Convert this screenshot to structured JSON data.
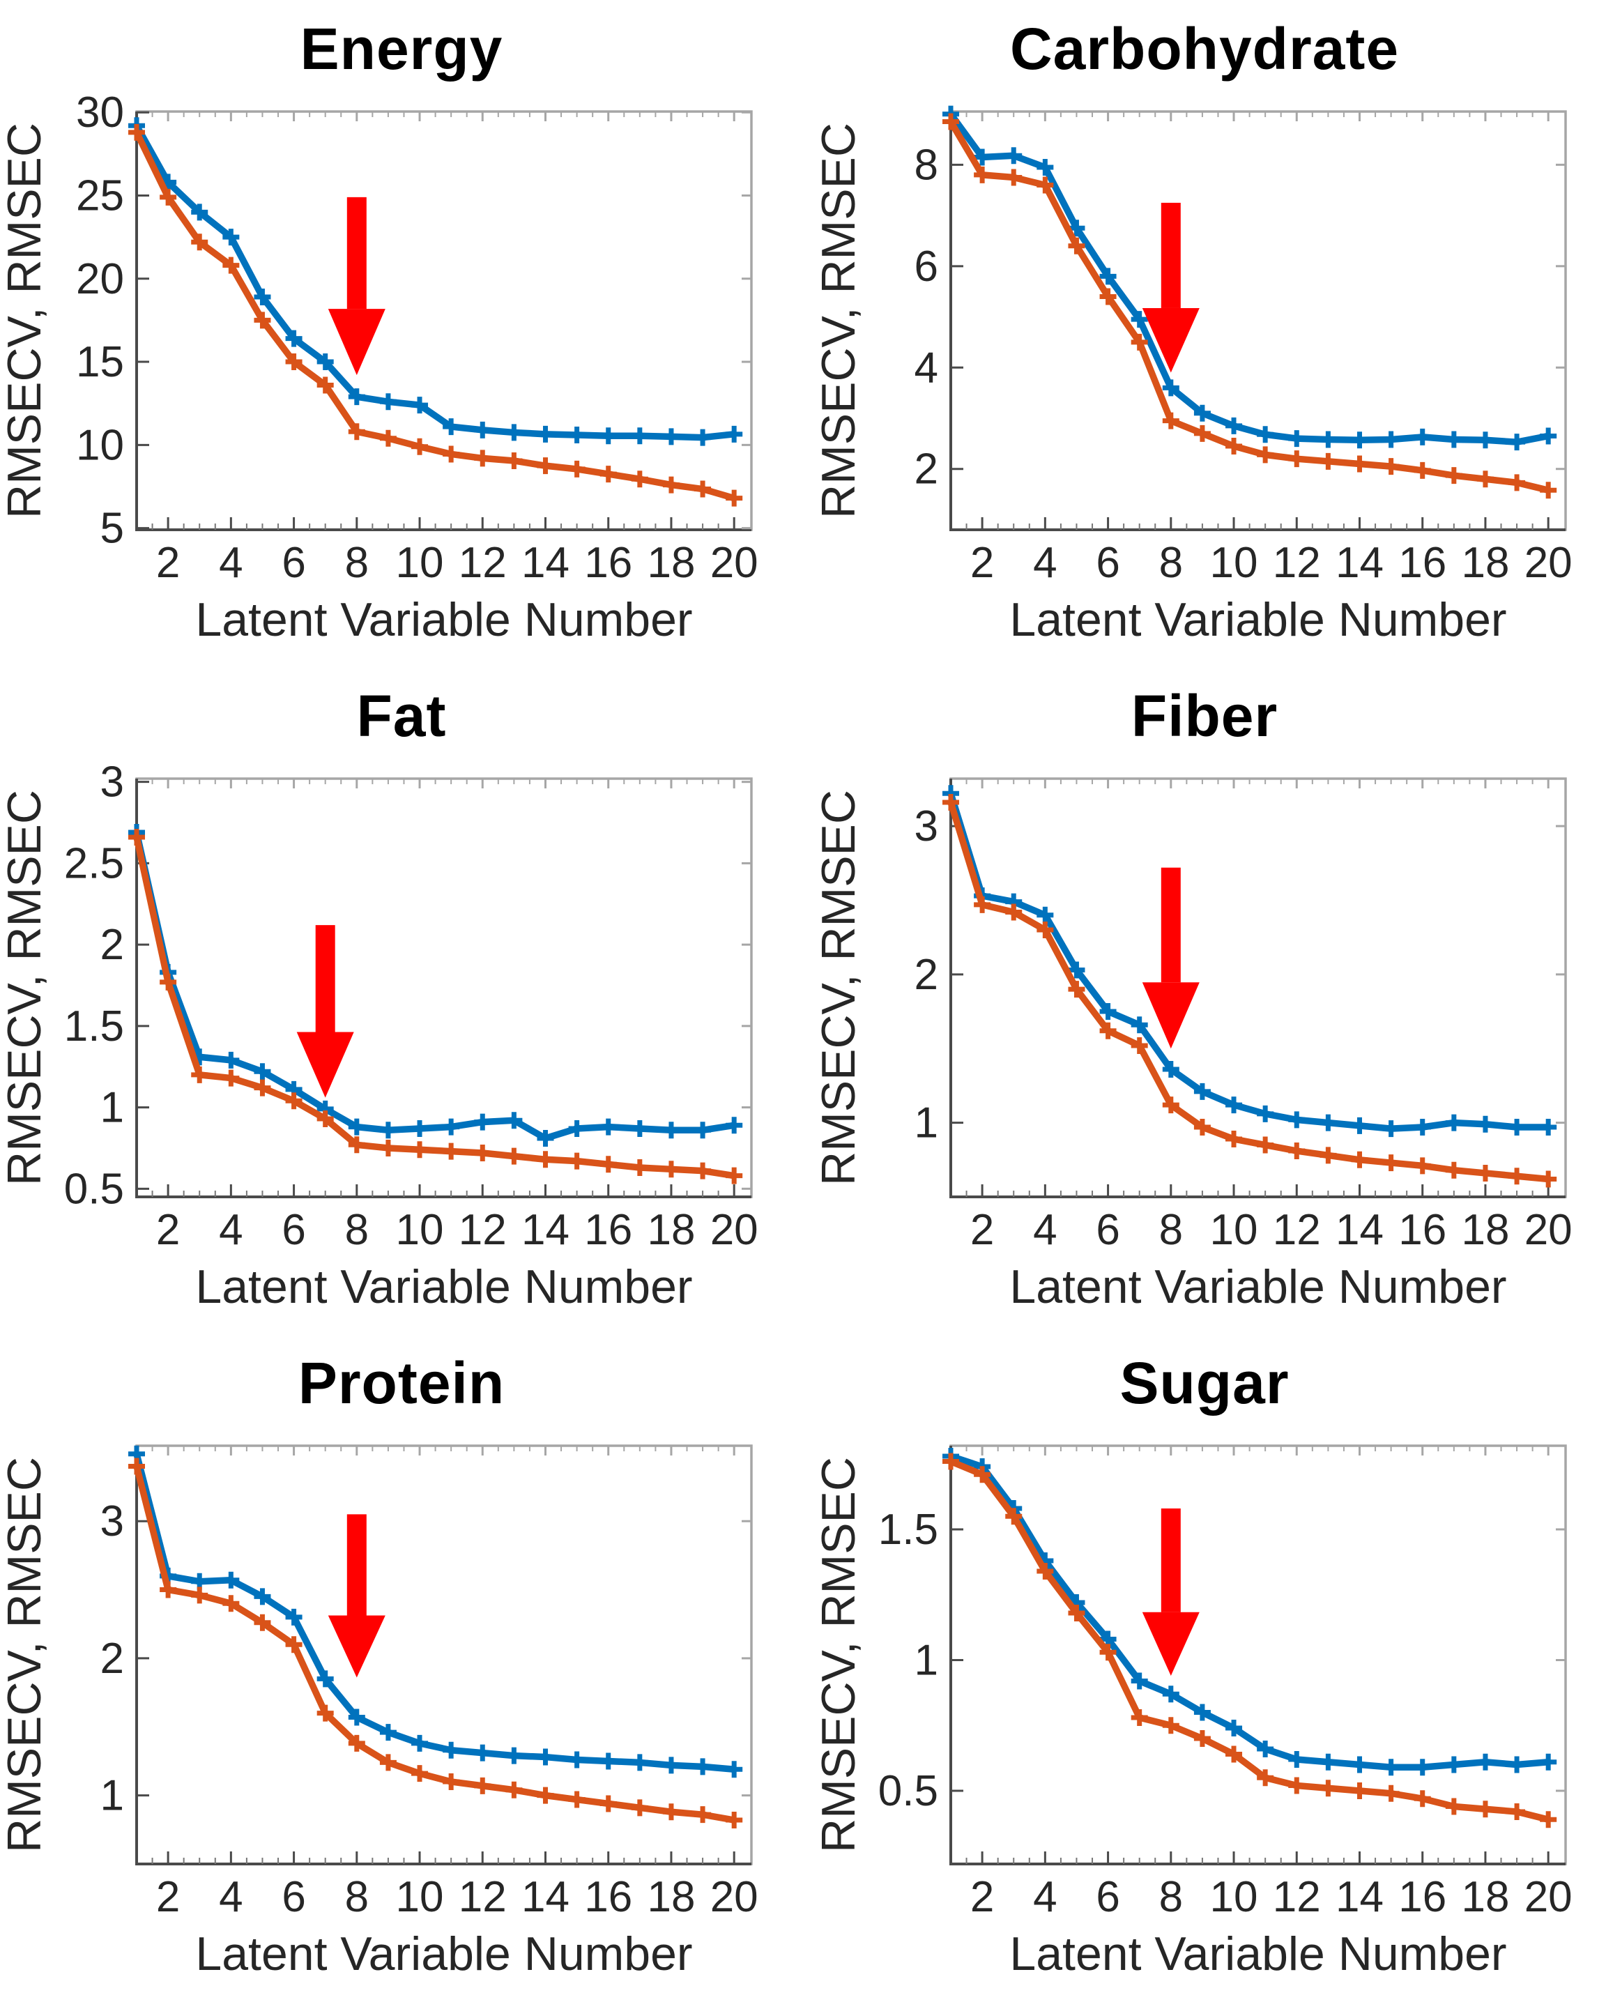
{
  "page": {
    "background": "#ffffff",
    "description": "Grid of six PLS regression diagnostic plots showing RMSECV and RMSEC versus number of latent variables, each with a red arrow marking the selected latent variable number"
  },
  "colors": {
    "rmsecv_blue": "#0072BD",
    "rmsec_orange": "#D95319",
    "arrow_red": "#FF0000",
    "axis_dark": "#4a4a4a",
    "axis_light": "#a6a6a6",
    "text": "#262626"
  },
  "x_values": [
    1,
    2,
    3,
    4,
    5,
    6,
    7,
    8,
    9,
    10,
    11,
    12,
    13,
    14,
    15,
    16,
    17,
    18,
    19,
    20
  ],
  "chart_data": [
    {
      "type": "line",
      "title": "Energy",
      "xlabel": "Latent Variable Number",
      "ylabel": "RMSECV, RMSEC",
      "xlim": [
        1,
        20.55
      ],
      "ylim": [
        4.9,
        30.05
      ],
      "xticks": [
        2,
        4,
        6,
        8,
        10,
        12,
        14,
        16,
        18,
        20
      ],
      "yticks": [
        5,
        10,
        15,
        20,
        25,
        30
      ],
      "grid": "off",
      "legend": "none",
      "series": [
        {
          "name": "RMSECV",
          "color": "#0072BD",
          "values": [
            29.2,
            25.8,
            24.0,
            22.5,
            18.9,
            16.4,
            15.0,
            12.9,
            12.6,
            12.4,
            11.1,
            10.9,
            10.75,
            10.65,
            10.6,
            10.55,
            10.55,
            10.5,
            10.45,
            10.65
          ]
        },
        {
          "name": "RMSEC",
          "color": "#D95319",
          "values": [
            28.8,
            24.9,
            22.2,
            20.8,
            17.5,
            15.0,
            13.6,
            10.8,
            10.4,
            9.9,
            9.45,
            9.2,
            9.05,
            8.75,
            8.55,
            8.25,
            7.95,
            7.6,
            7.35,
            6.8
          ]
        }
      ],
      "arrow": {
        "x": 8,
        "y_top": 24.9,
        "y_tip": 14.2
      }
    },
    {
      "type": "line",
      "title": "Carbohydrate",
      "xlabel": "Latent Variable Number",
      "ylabel": "RMSECV, RMSEC",
      "xlim": [
        1,
        20.55
      ],
      "ylim": [
        0.8,
        9.05
      ],
      "xticks": [
        2,
        4,
        6,
        8,
        10,
        12,
        14,
        16,
        18,
        20
      ],
      "yticks": [
        2,
        4,
        6,
        8
      ],
      "grid": "off",
      "legend": "none",
      "series": [
        {
          "name": "RMSECV",
          "color": "#0072BD",
          "values": [
            9.0,
            8.15,
            8.18,
            7.95,
            6.75,
            5.8,
            4.95,
            3.6,
            3.1,
            2.85,
            2.68,
            2.6,
            2.58,
            2.57,
            2.58,
            2.63,
            2.58,
            2.57,
            2.53,
            2.65
          ]
        },
        {
          "name": "RMSEC",
          "color": "#D95319",
          "values": [
            8.85,
            7.8,
            7.75,
            7.6,
            6.4,
            5.4,
            4.5,
            2.95,
            2.7,
            2.45,
            2.28,
            2.2,
            2.15,
            2.1,
            2.05,
            1.97,
            1.87,
            1.8,
            1.73,
            1.58
          ]
        }
      ],
      "arrow": {
        "x": 8,
        "y_top": 7.25,
        "y_tip": 3.9
      }
    },
    {
      "type": "line",
      "title": "Fat",
      "xlabel": "Latent Variable Number",
      "ylabel": "RMSECV, RMSEC",
      "xlim": [
        1,
        20.55
      ],
      "ylim": [
        0.45,
        3.02
      ],
      "xticks": [
        2,
        4,
        6,
        8,
        10,
        12,
        14,
        16,
        18,
        20
      ],
      "yticks": [
        0.5,
        1,
        1.5,
        2,
        2.5,
        3
      ],
      "grid": "off",
      "legend": "none",
      "series": [
        {
          "name": "RMSECV",
          "color": "#0072BD",
          "values": [
            2.69,
            1.83,
            1.31,
            1.29,
            1.22,
            1.11,
            0.99,
            0.88,
            0.86,
            0.87,
            0.88,
            0.91,
            0.92,
            0.81,
            0.87,
            0.88,
            0.87,
            0.86,
            0.86,
            0.89
          ]
        },
        {
          "name": "RMSEC",
          "color": "#D95319",
          "values": [
            2.66,
            1.77,
            1.2,
            1.18,
            1.12,
            1.04,
            0.93,
            0.77,
            0.75,
            0.74,
            0.73,
            0.72,
            0.7,
            0.68,
            0.67,
            0.65,
            0.63,
            0.62,
            0.61,
            0.58
          ]
        }
      ],
      "arrow": {
        "x": 7,
        "y_top": 2.12,
        "y_tip": 1.06
      }
    },
    {
      "type": "line",
      "title": "Fiber",
      "xlabel": "Latent Variable Number",
      "ylabel": "RMSECV, RMSEC",
      "xlim": [
        1,
        20.55
      ],
      "ylim": [
        0.5,
        3.32
      ],
      "xticks": [
        2,
        4,
        6,
        8,
        10,
        12,
        14,
        16,
        18,
        20
      ],
      "yticks": [
        1,
        2,
        3
      ],
      "grid": "off",
      "legend": "none",
      "series": [
        {
          "name": "RMSECV",
          "color": "#0072BD",
          "values": [
            3.22,
            2.53,
            2.49,
            2.4,
            2.03,
            1.75,
            1.66,
            1.36,
            1.21,
            1.12,
            1.06,
            1.02,
            1.0,
            0.98,
            0.96,
            0.97,
            1.0,
            0.99,
            0.97,
            0.97
          ]
        },
        {
          "name": "RMSEC",
          "color": "#D95319",
          "values": [
            3.16,
            2.47,
            2.42,
            2.3,
            1.9,
            1.62,
            1.52,
            1.12,
            0.97,
            0.89,
            0.85,
            0.81,
            0.78,
            0.75,
            0.73,
            0.71,
            0.68,
            0.66,
            0.64,
            0.62
          ]
        }
      ],
      "arrow": {
        "x": 8,
        "y_top": 2.72,
        "y_tip": 1.5
      }
    },
    {
      "type": "line",
      "title": "Protein",
      "xlabel": "Latent Variable Number",
      "ylabel": "RMSECV, RMSEC",
      "xlim": [
        1,
        20.55
      ],
      "ylim": [
        0.5,
        3.55
      ],
      "xticks": [
        2,
        4,
        6,
        8,
        10,
        12,
        14,
        16,
        18,
        20
      ],
      "yticks": [
        1,
        2,
        3
      ],
      "grid": "off",
      "legend": "none",
      "series": [
        {
          "name": "RMSECV",
          "color": "#0072BD",
          "values": [
            3.49,
            2.6,
            2.56,
            2.57,
            2.45,
            2.3,
            1.85,
            1.57,
            1.46,
            1.38,
            1.33,
            1.31,
            1.29,
            1.28,
            1.26,
            1.25,
            1.24,
            1.22,
            1.21,
            1.19
          ]
        },
        {
          "name": "RMSEC",
          "color": "#D95319",
          "values": [
            3.4,
            2.5,
            2.46,
            2.4,
            2.26,
            2.1,
            1.6,
            1.38,
            1.24,
            1.16,
            1.1,
            1.07,
            1.04,
            1.0,
            0.97,
            0.94,
            0.91,
            0.88,
            0.86,
            0.82
          ]
        }
      ],
      "arrow": {
        "x": 8,
        "y_top": 3.05,
        "y_tip": 1.86
      }
    },
    {
      "type": "line",
      "title": "Sugar",
      "xlabel": "Latent Variable Number",
      "ylabel": "RMSECV, RMSEC",
      "xlim": [
        1,
        20.55
      ],
      "ylim": [
        0.22,
        1.82
      ],
      "xticks": [
        2,
        4,
        6,
        8,
        10,
        12,
        14,
        16,
        18,
        20
      ],
      "yticks": [
        0.5,
        1,
        1.5
      ],
      "grid": "off",
      "legend": "none",
      "series": [
        {
          "name": "RMSECV",
          "color": "#0072BD",
          "values": [
            1.78,
            1.74,
            1.58,
            1.38,
            1.22,
            1.08,
            0.92,
            0.87,
            0.8,
            0.74,
            0.66,
            0.62,
            0.61,
            0.6,
            0.59,
            0.59,
            0.6,
            0.61,
            0.6,
            0.61
          ]
        },
        {
          "name": "RMSEC",
          "color": "#D95319",
          "values": [
            1.76,
            1.71,
            1.55,
            1.34,
            1.18,
            1.03,
            0.78,
            0.75,
            0.7,
            0.64,
            0.55,
            0.52,
            0.51,
            0.5,
            0.49,
            0.47,
            0.44,
            0.43,
            0.42,
            0.39
          ]
        }
      ],
      "arrow": {
        "x": 8,
        "y_top": 1.58,
        "y_tip": 0.94
      }
    }
  ]
}
